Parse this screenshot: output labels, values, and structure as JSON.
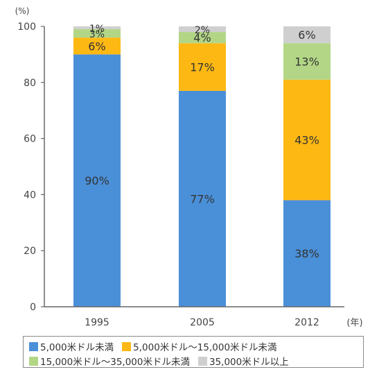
{
  "chart_data": {
    "type": "bar",
    "stacked": true,
    "y_unit_label": "(%)",
    "x_unit_label": "(年)",
    "categories": [
      "1995",
      "2005",
      "2012"
    ],
    "ylim": [
      0,
      100
    ],
    "y_ticks": [
      "0",
      "20",
      "40",
      "60",
      "80",
      "100"
    ],
    "series": [
      {
        "name": "5,000米ドル未満",
        "color": "#4a90d9",
        "values": [
          90,
          77,
          38
        ],
        "labels": [
          "90%",
          "77%",
          "38%"
        ]
      },
      {
        "name": "5,000米ドル～15,000米ドル未満",
        "color": "#fdb813",
        "values": [
          6,
          17,
          43
        ],
        "labels": [
          "6%",
          "17%",
          "43%"
        ]
      },
      {
        "name": "15,000米ドル～35,000米ドル未満",
        "color": "#b2d686",
        "values": [
          3,
          4,
          13
        ],
        "labels": [
          "3%",
          "4%",
          "13%"
        ]
      },
      {
        "name": "35,000米ドル以上",
        "color": "#cfcfcf",
        "values": [
          1,
          2,
          6
        ],
        "labels": [
          "1%",
          "2%",
          "6%"
        ]
      }
    ],
    "grid": false,
    "legend_position": "bottom"
  }
}
